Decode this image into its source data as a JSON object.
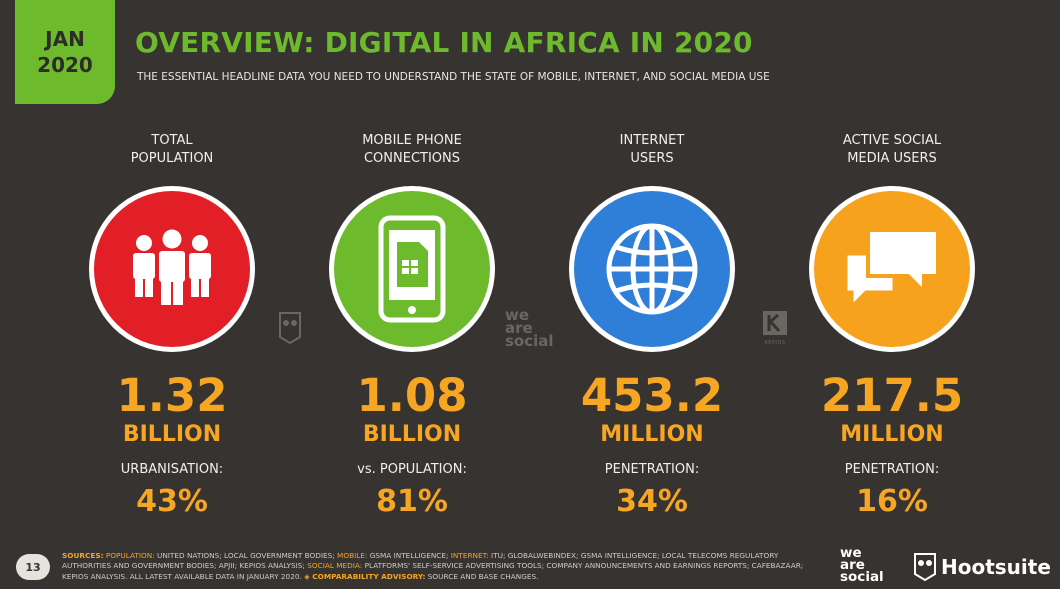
{
  "badge": {
    "month": "JAN",
    "year": "2020"
  },
  "header": {
    "title": "OVERVIEW: DIGITAL IN AFRICA IN 2020",
    "subtitle": "THE ESSENTIAL HEADLINE DATA YOU NEED TO UNDERSTAND THE STATE OF MOBILE, INTERNET, AND SOCIAL MEDIA USE"
  },
  "stats": [
    {
      "label_line1": "TOTAL",
      "label_line2": "POPULATION",
      "icon": "people-icon",
      "color": "#e21f26",
      "value": "1.32",
      "unit": "BILLION",
      "metric_label": "URBANISATION:",
      "metric_value": "43%"
    },
    {
      "label_line1": "MOBILE PHONE",
      "label_line2": "CONNECTIONS",
      "icon": "mobile-phone-icon",
      "color": "#6dbb2d",
      "value": "1.08",
      "unit": "BILLION",
      "metric_label": "vs. POPULATION:",
      "metric_value": "81%"
    },
    {
      "label_line1": "INTERNET",
      "label_line2": "USERS",
      "icon": "globe-icon",
      "color": "#2f7ed8",
      "value": "453.2",
      "unit": "MILLION",
      "metric_label": "PENETRATION:",
      "metric_value": "34%"
    },
    {
      "label_line1": "ACTIVE SOCIAL",
      "label_line2": "MEDIA USERS",
      "icon": "chat-bubbles-icon",
      "color": "#f6a21d",
      "value": "217.5",
      "unit": "MILLION",
      "metric_label": "PENETRATION:",
      "metric_value": "16%"
    }
  ],
  "watermarks": {
    "we": "we",
    "are": "are",
    "social": "social",
    "kepios": "KEPIOS"
  },
  "footer": {
    "page_number": "13",
    "sources_key": "SOURCES:",
    "population_key": "POPULATION:",
    "population_text": "UNITED NATIONS; LOCAL GOVERNMENT BODIES;",
    "mobile_key": "MOBILE:",
    "mobile_text": "GSMA INTELLIGENCE;",
    "internet_key": "INTERNET:",
    "internet_text": "ITU; GLOBALWEBINDEX; GSMA INTELLIGENCE; LOCAL TELECOMS REGULATORY AUTHORITIES AND GOVERNMENT BODIES; APJII; KEPIOS ANALYSIS;",
    "social_key": "SOCIAL MEDIA:",
    "social_text": "PLATFORMS' SELF-SERVICE ADVERTISING TOOLS; COMPANY ANNOUNCEMENTS AND EARNINGS REPORTS; CAFEBAZAAR; KEPIOS ANALYSIS. ALL LATEST AVAILABLE DATA IN JANUARY 2020.",
    "advisory_key": "◈ COMPARABILITY ADVISORY:",
    "advisory_text": "SOURCE AND BASE CHANGES.",
    "we_are_social_we": "we",
    "we_are_social_are": "are",
    "we_are_social_social": "social",
    "hootsuite": "Hootsuite"
  },
  "colors": {
    "accent_green": "#6dbb2d",
    "accent_orange": "#f6a623",
    "background": "#363331"
  }
}
